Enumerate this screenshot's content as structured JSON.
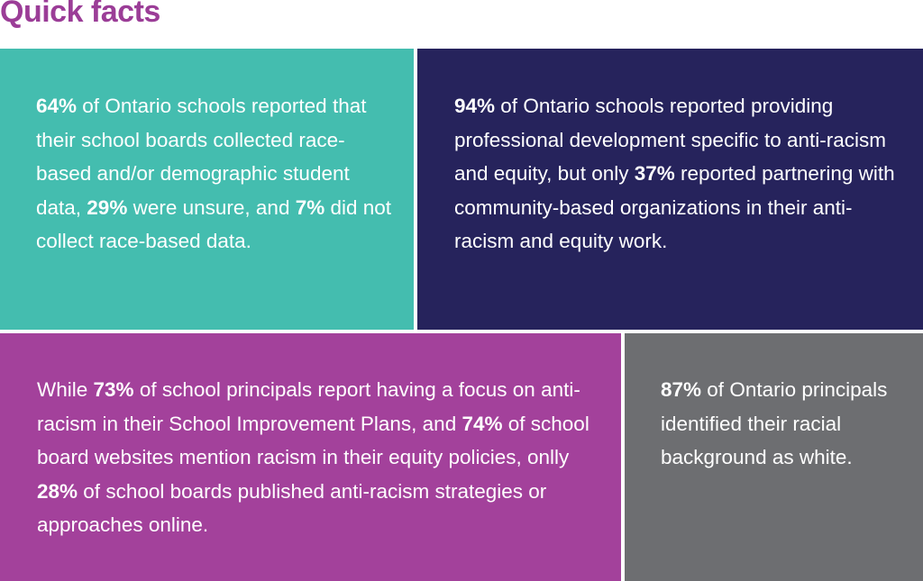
{
  "title": "Quick facts",
  "colors": {
    "title": "#9b3d97",
    "teal": "#44bdaf",
    "navy": "#26235c",
    "purple": "#a3419b",
    "grey": "#6d6e71"
  },
  "fact1": {
    "p1": "64%",
    "t1": " of Ontario schools reported that their school boards collected race-based and/or demographic student data, ",
    "p2": "29%",
    "t2": " were unsure, and ",
    "p3": "7%",
    "t3": " did not collect race-based data."
  },
  "fact2": {
    "p1": "94%",
    "t1": " of Ontario schools reported providing professional development specific to anti-racism and equity, but only ",
    "p2": "37%",
    "t2": " reported partnering with community-based organizations in their anti-racism and equity work."
  },
  "fact3": {
    "t0": "While ",
    "p1": "73%",
    "t1": " of school principals report having a focus on anti-racism in their School Improvement Plans, and ",
    "p2": "74%",
    "t2": " of school board websites mention racism in their equity policies, onlly ",
    "p3": "28%",
    "t3": " of school boards published anti-racism strategies or approaches online."
  },
  "fact4": {
    "p1": "87%",
    "t1": " of Ontario principals identified their racial background as white."
  }
}
